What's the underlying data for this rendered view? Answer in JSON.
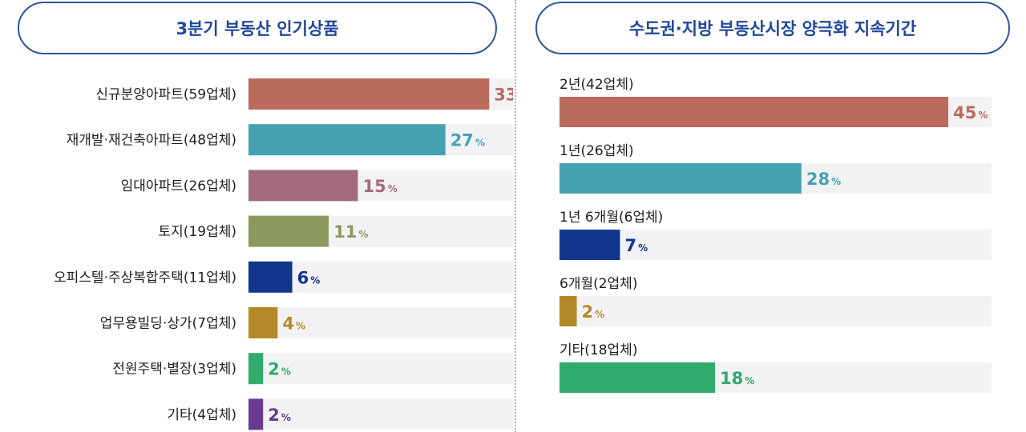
{
  "chart_data": [
    {
      "type": "bar",
      "orientation": "horizontal",
      "title": "3분기 부동산 인기상품",
      "categories": [
        "신규분양아파트(59업체)",
        "재개발·재건축아파트(48업체)",
        "임대아파트(26업체)",
        "토지(19업체)",
        "오피스텔·주상복합주택(11업체)",
        "업무용빌딩·상가(7업체)",
        "전원주택·별장(3업체)",
        "기타(4업체)"
      ],
      "values": [
        33,
        27,
        15,
        11,
        6,
        4,
        2,
        2
      ],
      "colors": [
        "#bb6a5e",
        "#46a2b1",
        "#a3697e",
        "#8a9a5e",
        "#10378c",
        "#b38a27",
        "#2fab6c",
        "#6a3a92"
      ],
      "value_suffix": "%",
      "xlim": [
        0,
        40
      ]
    },
    {
      "type": "bar",
      "orientation": "horizontal",
      "title": "수도권·지방 부동산시장 양극화 지속기간",
      "categories": [
        "2년(42업체)",
        "1년(26업체)",
        "1년 6개월(6업체)",
        "6개월(2업체)",
        "기타(18업체)"
      ],
      "values": [
        45,
        28,
        7,
        2,
        18
      ],
      "colors": [
        "#bb6a5e",
        "#46a2b1",
        "#10378c",
        "#b38a27",
        "#2fab6c"
      ],
      "value_suffix": "%",
      "xlim": [
        0,
        50
      ]
    }
  ]
}
